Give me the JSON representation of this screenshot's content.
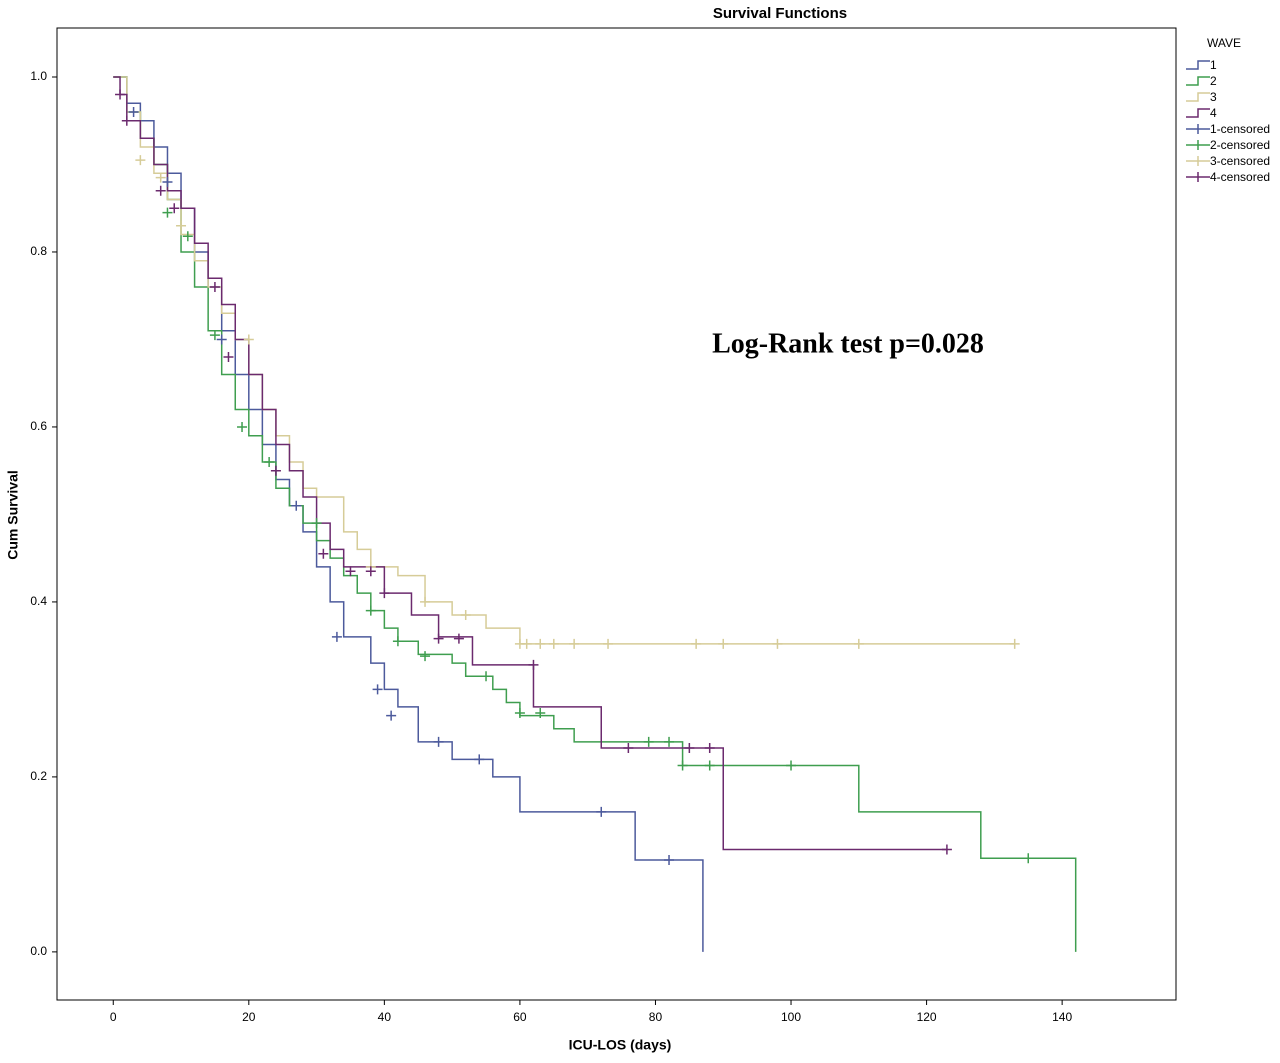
{
  "chart_data": {
    "type": "step",
    "title": "Survival Functions",
    "x_label": "ICU-LOS (days)",
    "y_label": "Cum Survival",
    "annotation": "Log-Rank test p=0.028",
    "legend_title": "WAVE",
    "legend": "right",
    "xlim": [
      -8.3,
      156.8
    ],
    "ylim": [
      -0.055,
      1.056
    ],
    "xticks": [
      0,
      20,
      40,
      60,
      80,
      100,
      120,
      140
    ],
    "yticks": [
      {
        "value": 0,
        "label": "0.0"
      },
      0.2,
      0.4,
      0.6,
      0.8,
      {
        "value": 1,
        "label": "1.0"
      }
    ],
    "series": [
      {
        "name": "1",
        "kind": "step",
        "color": "#4c5a9c",
        "x": [
          0,
          2,
          4,
          6,
          8,
          10,
          12,
          14,
          16,
          18,
          20,
          22,
          24,
          26,
          28,
          30,
          32,
          34,
          38,
          40,
          42,
          45,
          50,
          56,
          60,
          77,
          87
        ],
        "values": [
          1.0,
          0.97,
          0.95,
          0.92,
          0.89,
          0.85,
          0.8,
          0.76,
          0.71,
          0.66,
          0.62,
          0.58,
          0.54,
          0.51,
          0.48,
          0.44,
          0.4,
          0.36,
          0.33,
          0.3,
          0.28,
          0.24,
          0.22,
          0.2,
          0.16,
          0.105,
          0.0
        ]
      },
      {
        "name": "2",
        "kind": "step",
        "color": "#3f9e4f",
        "x": [
          0,
          2,
          4,
          6,
          8,
          10,
          12,
          14,
          16,
          18,
          20,
          22,
          24,
          26,
          28,
          30,
          32,
          34,
          36,
          38,
          40,
          42,
          45,
          50,
          52,
          56,
          58,
          60,
          65,
          68,
          84,
          110,
          128,
          142
        ],
        "values": [
          1.0,
          0.96,
          0.93,
          0.9,
          0.86,
          0.8,
          0.76,
          0.71,
          0.66,
          0.62,
          0.59,
          0.56,
          0.53,
          0.51,
          0.49,
          0.47,
          0.45,
          0.43,
          0.41,
          0.39,
          0.37,
          0.355,
          0.34,
          0.33,
          0.315,
          0.3,
          0.285,
          0.27,
          0.255,
          0.24,
          0.213,
          0.16,
          0.107,
          0.0
        ]
      },
      {
        "name": "3",
        "kind": "step",
        "color": "#d6cc98",
        "x": [
          0,
          2,
          4,
          6,
          8,
          10,
          12,
          14,
          16,
          18,
          20,
          22,
          24,
          26,
          28,
          30,
          34,
          36,
          38,
          42,
          46,
          50,
          55,
          60,
          133
        ],
        "values": [
          1.0,
          0.96,
          0.92,
          0.89,
          0.86,
          0.82,
          0.79,
          0.76,
          0.73,
          0.7,
          0.66,
          0.62,
          0.59,
          0.56,
          0.53,
          0.52,
          0.48,
          0.46,
          0.44,
          0.43,
          0.4,
          0.385,
          0.37,
          0.352,
          0.352
        ]
      },
      {
        "name": "4",
        "kind": "step",
        "color": "#6b2a6e",
        "x": [
          0,
          1,
          2,
          4,
          6,
          8,
          10,
          12,
          14,
          16,
          18,
          20,
          22,
          24,
          26,
          28,
          30,
          32,
          34,
          40,
          44,
          48,
          53,
          62,
          72,
          77,
          90,
          123
        ],
        "values": [
          1.0,
          0.98,
          0.95,
          0.93,
          0.9,
          0.87,
          0.85,
          0.81,
          0.77,
          0.74,
          0.7,
          0.66,
          0.62,
          0.58,
          0.55,
          0.52,
          0.49,
          0.46,
          0.44,
          0.41,
          0.385,
          0.36,
          0.328,
          0.28,
          0.233,
          0.233,
          0.117,
          0.117
        ]
      },
      {
        "name": "1-censored",
        "kind": "censored",
        "color": "#4c5a9c",
        "x": [
          3,
          8,
          16,
          27,
          33,
          39,
          41,
          48,
          54,
          72,
          82
        ],
        "values": [
          0.96,
          0.88,
          0.7,
          0.51,
          0.36,
          0.3,
          0.27,
          0.24,
          0.22,
          0.16,
          0.105
        ]
      },
      {
        "name": "2-censored",
        "kind": "censored",
        "color": "#3f9e4f",
        "x": [
          8,
          11,
          15,
          19,
          23,
          30,
          38,
          42,
          46,
          55,
          60,
          63,
          79,
          82,
          84,
          88,
          100,
          135
        ],
        "values": [
          0.845,
          0.818,
          0.705,
          0.6,
          0.56,
          0.49,
          0.39,
          0.355,
          0.338,
          0.315,
          0.273,
          0.273,
          0.24,
          0.24,
          0.213,
          0.213,
          0.213,
          0.107
        ]
      },
      {
        "name": "3-censored",
        "kind": "censored",
        "color": "#d6cc98",
        "x": [
          4,
          7,
          10,
          20,
          38,
          46,
          52,
          60,
          61,
          63,
          65,
          68,
          73,
          86,
          90,
          98,
          110,
          133
        ],
        "values": [
          0.905,
          0.885,
          0.83,
          0.7,
          0.44,
          0.4,
          0.385,
          0.352,
          0.352,
          0.352,
          0.352,
          0.352,
          0.352,
          0.352,
          0.352,
          0.352,
          0.352,
          0.352
        ]
      },
      {
        "name": "4-censored",
        "kind": "censored",
        "color": "#6b2a6e",
        "x": [
          1,
          2,
          7,
          9,
          15,
          17,
          24,
          31,
          35,
          38,
          40,
          48,
          51,
          62,
          76,
          85,
          88,
          123
        ],
        "values": [
          0.98,
          0.95,
          0.87,
          0.85,
          0.76,
          0.68,
          0.55,
          0.455,
          0.435,
          0.435,
          0.41,
          0.358,
          0.358,
          0.328,
          0.233,
          0.233,
          0.233,
          0.117
        ]
      }
    ]
  }
}
